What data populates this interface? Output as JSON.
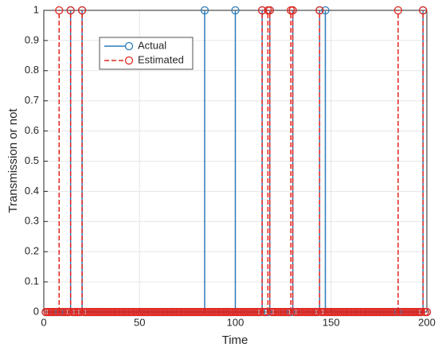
{
  "chart_data": {
    "type": "stem",
    "xlabel": "Time",
    "ylabel": "Transmission or not",
    "x": [
      1,
      2,
      3,
      4,
      5,
      6,
      7,
      8,
      9,
      10,
      11,
      12,
      13,
      14,
      15,
      16,
      17,
      18,
      19,
      20,
      21,
      22,
      23,
      24,
      25,
      26,
      27,
      28,
      29,
      30,
      31,
      32,
      33,
      34,
      35,
      36,
      37,
      38,
      39,
      40,
      41,
      42,
      43,
      44,
      45,
      46,
      47,
      48,
      49,
      50,
      51,
      52,
      53,
      54,
      55,
      56,
      57,
      58,
      59,
      60,
      61,
      62,
      63,
      64,
      65,
      66,
      67,
      68,
      69,
      70,
      71,
      72,
      73,
      74,
      75,
      76,
      77,
      78,
      79,
      80,
      81,
      82,
      83,
      84,
      85,
      86,
      87,
      88,
      89,
      90,
      91,
      92,
      93,
      94,
      95,
      96,
      97,
      98,
      99,
      100,
      101,
      102,
      103,
      104,
      105,
      106,
      107,
      108,
      109,
      110,
      111,
      112,
      113,
      114,
      115,
      116,
      117,
      118,
      119,
      120,
      121,
      122,
      123,
      124,
      125,
      126,
      127,
      128,
      129,
      130,
      131,
      132,
      133,
      134,
      135,
      136,
      137,
      138,
      139,
      140,
      141,
      142,
      143,
      144,
      145,
      146,
      147,
      148,
      149,
      150,
      151,
      152,
      153,
      154,
      155,
      156,
      157,
      158,
      159,
      160,
      161,
      162,
      163,
      164,
      165,
      166,
      167,
      168,
      169,
      170,
      171,
      172,
      173,
      174,
      175,
      176,
      177,
      178,
      179,
      180,
      181,
      182,
      183,
      184,
      185,
      186,
      187,
      188,
      189,
      190,
      191,
      192,
      193,
      194,
      195,
      196,
      197,
      198,
      199,
      200
    ],
    "series": [
      {
        "name": "Actual",
        "color": "#2b7bb9",
        "dashed": false,
        "values": [
          0,
          0,
          0,
          0,
          0,
          0,
          0,
          0,
          0,
          0,
          0,
          0,
          0,
          1,
          0,
          0,
          0,
          0,
          0,
          1,
          0,
          0,
          0,
          0,
          0,
          0,
          0,
          0,
          0,
          0,
          0,
          0,
          0,
          0,
          0,
          0,
          0,
          0,
          0,
          0,
          0,
          0,
          0,
          0,
          0,
          0,
          0,
          0,
          0,
          0,
          0,
          0,
          0,
          0,
          0,
          0,
          0,
          0,
          0,
          0,
          0,
          0,
          0,
          0,
          0,
          0,
          0,
          0,
          0,
          0,
          0,
          0,
          0,
          0,
          0,
          0,
          0,
          0,
          0,
          0,
          0,
          0,
          0,
          1,
          0,
          0,
          0,
          0,
          0,
          0,
          0,
          0,
          0,
          0,
          0,
          0,
          0,
          0,
          0,
          1,
          0,
          0,
          0,
          0,
          0,
          0,
          0,
          0,
          0,
          0,
          0,
          0,
          0,
          1,
          0,
          0,
          0,
          1,
          0,
          0,
          0,
          0,
          0,
          0,
          0,
          0,
          0,
          0,
          0,
          1,
          0,
          0,
          0,
          0,
          0,
          0,
          0,
          0,
          0,
          0,
          0,
          0,
          0,
          1,
          0,
          0,
          1,
          0,
          0,
          0,
          0,
          0,
          0,
          0,
          0,
          0,
          0,
          0,
          0,
          0,
          0,
          0,
          0,
          0,
          0,
          0,
          0,
          0,
          0,
          0,
          0,
          0,
          0,
          0,
          0,
          0,
          0,
          0,
          0,
          0,
          0,
          0,
          0,
          0,
          0,
          0,
          0,
          0,
          0,
          0,
          0,
          0,
          0,
          0,
          0,
          0,
          0,
          1,
          0,
          0
        ]
      },
      {
        "name": "Estimated",
        "color": "#e3261f",
        "dashed": true,
        "values": [
          0,
          0,
          0,
          0,
          0,
          0,
          0,
          1,
          0,
          0,
          0,
          0,
          0,
          1,
          0,
          0,
          0,
          0,
          0,
          1,
          0,
          0,
          0,
          0,
          0,
          0,
          0,
          0,
          0,
          0,
          0,
          0,
          0,
          0,
          0,
          0,
          0,
          0,
          0,
          0,
          0,
          0,
          0,
          0,
          0,
          0,
          0,
          0,
          0,
          0,
          0,
          0,
          0,
          0,
          0,
          0,
          0,
          0,
          0,
          0,
          0,
          0,
          0,
          0,
          0,
          0,
          0,
          0,
          0,
          0,
          0,
          0,
          0,
          0,
          0,
          0,
          0,
          0,
          0,
          0,
          0,
          0,
          0,
          0,
          0,
          0,
          0,
          0,
          0,
          0,
          0,
          0,
          0,
          0,
          0,
          0,
          0,
          0,
          0,
          0,
          0,
          0,
          0,
          0,
          0,
          0,
          0,
          0,
          0,
          0,
          0,
          0,
          0,
          1,
          0,
          0,
          1,
          1,
          0,
          0,
          0,
          0,
          0,
          0,
          0,
          0,
          0,
          0,
          1,
          1,
          0,
          0,
          0,
          0,
          0,
          0,
          0,
          0,
          0,
          0,
          0,
          0,
          0,
          1,
          0,
          0,
          0,
          0,
          0,
          0,
          0,
          0,
          0,
          0,
          0,
          0,
          0,
          0,
          0,
          0,
          0,
          0,
          0,
          0,
          0,
          0,
          0,
          0,
          0,
          0,
          0,
          0,
          0,
          0,
          0,
          0,
          0,
          0,
          0,
          0,
          0,
          0,
          0,
          0,
          1,
          0,
          0,
          0,
          0,
          0,
          0,
          0,
          0,
          0,
          0,
          0,
          0,
          1,
          0,
          0
        ]
      }
    ],
    "xlim": [
      0,
      200
    ],
    "xticks": [
      0,
      50,
      100,
      150,
      200
    ],
    "ylim": [
      0,
      1
    ],
    "yticks": [
      0,
      0.1,
      0.2,
      0.3,
      0.4,
      0.5,
      0.6,
      0.7,
      0.8,
      0.9,
      1
    ],
    "grid": true,
    "legend": "northwest"
  }
}
